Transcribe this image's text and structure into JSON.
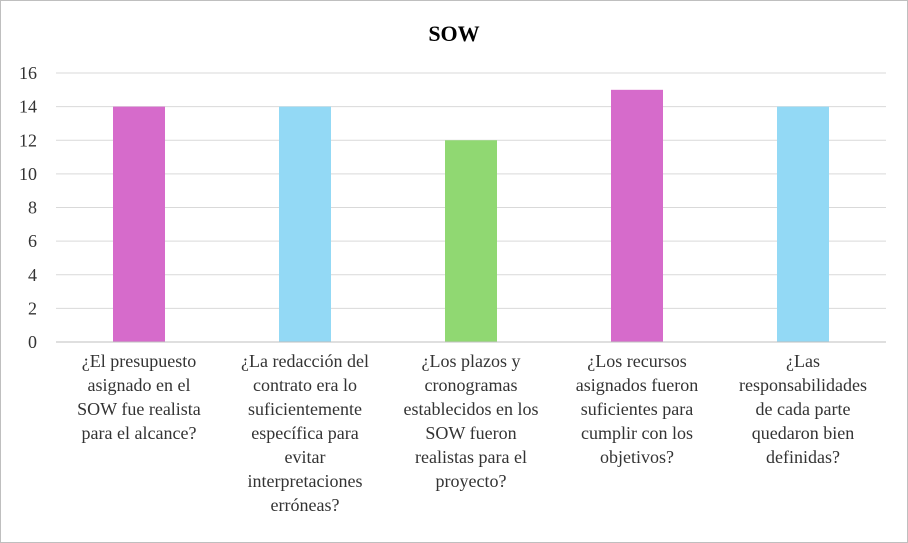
{
  "chart_data": {
    "type": "bar",
    "title": "SOW",
    "xlabel": "",
    "ylabel": "",
    "ylim": [
      0,
      16
    ],
    "y_ticks": [
      "0",
      "2",
      "4",
      "6",
      "8",
      "10",
      "12",
      "14",
      "16"
    ],
    "grid": true,
    "legend": "none",
    "categories": [
      [
        "¿El presupuesto",
        "asignado en el",
        "SOW fue realista",
        "para el alcance?"
      ],
      [
        "¿La redacción del",
        "contrato era lo",
        "suficientemente",
        "específica para",
        "evitar",
        "interpretaciones",
        "erróneas?"
      ],
      [
        "¿Los plazos y",
        "cronogramas",
        "establecidos en los",
        "SOW fueron",
        "realistas para el",
        "proyecto?"
      ],
      [
        "¿Los recursos",
        "asignados fueron",
        "suficientes para",
        "cumplir con los",
        "objetivos?"
      ],
      [
        "¿Las",
        "responsabilidades",
        "de cada parte",
        "quedaron bien",
        "definidas?"
      ]
    ],
    "values": [
      14,
      14,
      12,
      15,
      14
    ],
    "colors": [
      "#d66bcb",
      "#93d9f5",
      "#90d872",
      "#d66bcb",
      "#93d9f5"
    ],
    "grid_color": "#d9d9d9",
    "axis_color": "#bfbfbf"
  }
}
